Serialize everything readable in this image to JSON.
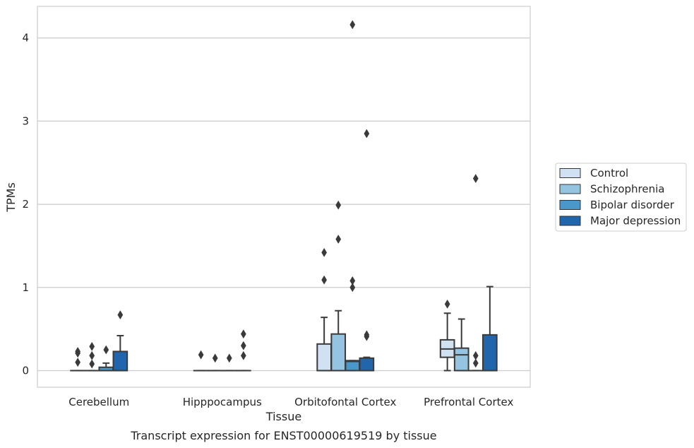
{
  "chart_data": {
    "type": "box",
    "caption": "Transcript expression for ENST00000619519 by tissue",
    "xlabel": "Tissue",
    "ylabel": "TPMs",
    "ylim": [
      -0.2,
      4.38
    ],
    "yticks": [
      0,
      1,
      2,
      3,
      4
    ],
    "grid": "horizontal",
    "legend_placement": "center-right",
    "categories": [
      "Cerebellum",
      "Hipppocampus",
      "Orbitofontal Cortex",
      "Prefrontal Cortex"
    ],
    "series": [
      {
        "name": "Control",
        "color": "#d0e1f2",
        "boxes": [
          {
            "q1": 0,
            "median": 0,
            "q3": 0,
            "whisker_low": 0,
            "whisker_high": 0,
            "outliers": [
              0.1,
              0.21,
              0.23
            ]
          },
          {
            "q1": 0,
            "median": 0,
            "q3": 0,
            "whisker_low": 0,
            "whisker_high": 0,
            "outliers": [
              0.19
            ]
          },
          {
            "q1": 0,
            "median": 0,
            "q3": 0.32,
            "whisker_low": 0,
            "whisker_high": 0.64,
            "outliers": [
              1.09,
              1.42
            ]
          },
          {
            "q1": 0.16,
            "median": 0.26,
            "q3": 0.37,
            "whisker_low": 0,
            "whisker_high": 0.69,
            "outliers": [
              0.8
            ]
          }
        ]
      },
      {
        "name": "Schizophrenia",
        "color": "#94c4df",
        "boxes": [
          {
            "q1": 0,
            "median": 0,
            "q3": 0,
            "whisker_low": 0,
            "whisker_high": 0,
            "outliers": [
              0.08,
              0.18,
              0.29
            ]
          },
          {
            "q1": 0,
            "median": 0,
            "q3": 0,
            "whisker_low": 0,
            "whisker_high": 0,
            "outliers": [
              0.15
            ]
          },
          {
            "q1": 0,
            "median": 0,
            "q3": 0.44,
            "whisker_low": 0,
            "whisker_high": 0.72,
            "outliers": [
              1.58,
              1.99
            ]
          },
          {
            "q1": 0,
            "median": 0.19,
            "q3": 0.27,
            "whisker_low": 0,
            "whisker_high": 0.62,
            "outliers": []
          }
        ]
      },
      {
        "name": "Bipolar disorder",
        "color": "#4a98c9",
        "boxes": [
          {
            "q1": 0,
            "median": 0,
            "q3": 0.04,
            "whisker_low": 0,
            "whisker_high": 0.09,
            "outliers": [
              0.25
            ]
          },
          {
            "q1": 0,
            "median": 0,
            "q3": 0,
            "whisker_low": 0,
            "whisker_high": 0,
            "outliers": [
              0.15
            ]
          },
          {
            "q1": 0,
            "median": 0.11,
            "q3": 0.12,
            "whisker_low": 0,
            "whisker_high": 0.12,
            "outliers": [
              1.0,
              1.08,
              4.16
            ]
          },
          {
            "q1": 0,
            "median": 0,
            "q3": 0,
            "whisker_low": 0,
            "whisker_high": 0,
            "outliers": [
              0.09,
              0.18,
              2.31
            ]
          }
        ]
      },
      {
        "name": "Major depression",
        "color": "#2166ac",
        "boxes": [
          {
            "q1": 0,
            "median": 0,
            "q3": 0.23,
            "whisker_low": 0,
            "whisker_high": 0.42,
            "outliers": [
              0.67
            ]
          },
          {
            "q1": 0,
            "median": 0,
            "q3": 0,
            "whisker_low": 0,
            "whisker_high": 0,
            "outliers": [
              0.18,
              0.3,
              0.44
            ]
          },
          {
            "q1": 0,
            "median": 0,
            "q3": 0.15,
            "whisker_low": 0,
            "whisker_high": 0.16,
            "outliers": [
              0.41,
              0.43,
              2.85
            ]
          },
          {
            "q1": 0,
            "median": 0,
            "q3": 0.43,
            "whisker_low": 0,
            "whisker_high": 1.01,
            "outliers": []
          }
        ]
      }
    ]
  }
}
